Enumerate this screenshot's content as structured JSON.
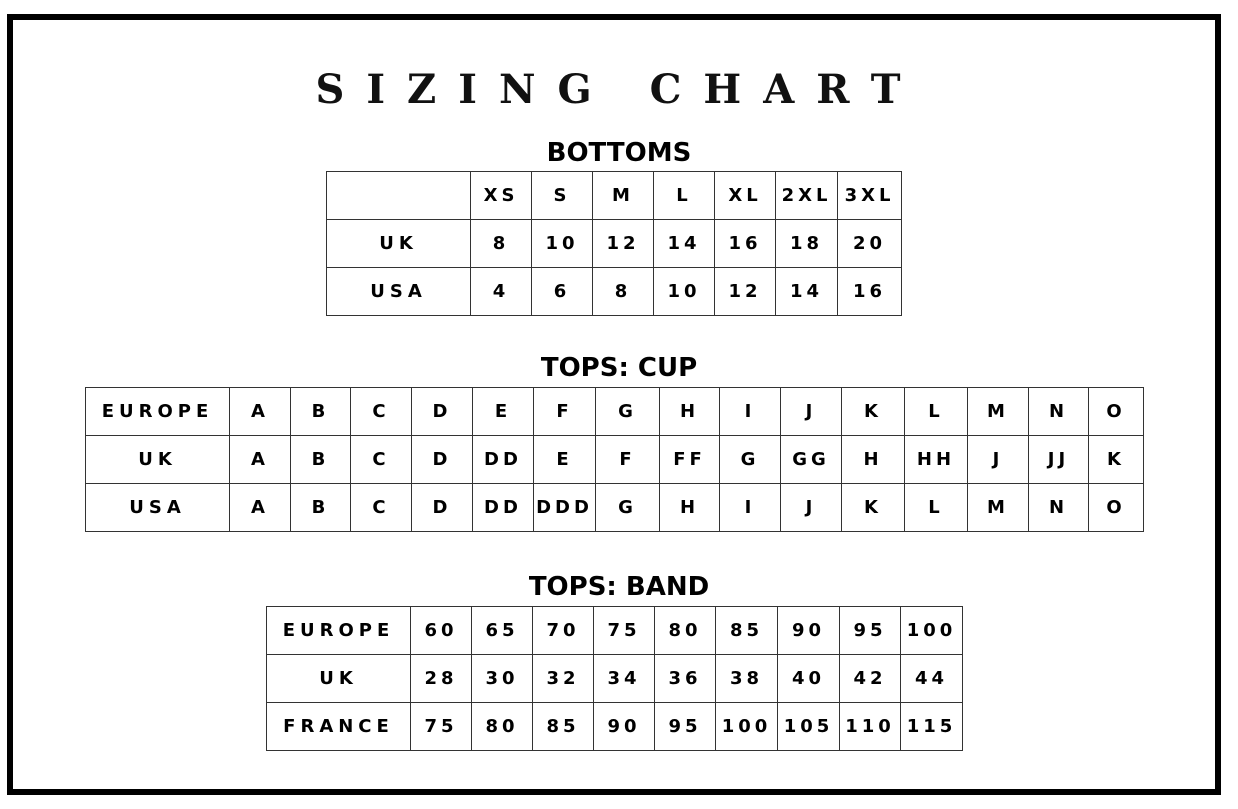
{
  "title": "SIZING CHART",
  "bottoms": {
    "heading": "BOTTOMS",
    "header": [
      "",
      "XS",
      "S",
      "M",
      "L",
      "XL",
      "2XL",
      "3XL"
    ],
    "rows": [
      [
        "UK",
        "8",
        "10",
        "12",
        "14",
        "16",
        "18",
        "20"
      ],
      [
        "USA",
        "4",
        "6",
        "8",
        "10",
        "12",
        "14",
        "16"
      ]
    ]
  },
  "cup": {
    "heading": "TOPS: CUP",
    "rows": [
      [
        "EUROPE",
        "A",
        "B",
        "C",
        "D",
        "E",
        "F",
        "G",
        "H",
        "I",
        "J",
        "K",
        "L",
        "M",
        "N",
        "O"
      ],
      [
        "UK",
        "A",
        "B",
        "C",
        "D",
        "DD",
        "E",
        "F",
        "FF",
        "G",
        "GG",
        "H",
        "HH",
        "J",
        "JJ",
        "K"
      ],
      [
        "USA",
        "A",
        "B",
        "C",
        "D",
        "DD",
        "DDD",
        "G",
        "H",
        "I",
        "J",
        "K",
        "L",
        "M",
        "N",
        "O"
      ]
    ]
  },
  "band": {
    "heading": "TOPS: BAND",
    "rows": [
      [
        "EUROPE",
        "60",
        "65",
        "70",
        "75",
        "80",
        "85",
        "90",
        "95",
        "100"
      ],
      [
        "UK",
        "28",
        "30",
        "32",
        "34",
        "36",
        "38",
        "40",
        "42",
        "44"
      ],
      [
        "FRANCE",
        "75",
        "80",
        "85",
        "90",
        "95",
        "100",
        "105",
        "110",
        "115"
      ]
    ]
  }
}
